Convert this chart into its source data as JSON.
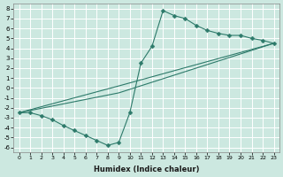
{
  "xlabel": "Humidex (Indice chaleur)",
  "ylabel": "",
  "bg_color": "#cce8e0",
  "line_color": "#2d7a6a",
  "grid_color": "#ffffff",
  "xmin": -0.5,
  "xmax": 23.5,
  "ymin": -6.5,
  "ymax": 8.5,
  "xticks": [
    0,
    1,
    2,
    3,
    4,
    5,
    6,
    7,
    8,
    9,
    10,
    11,
    12,
    13,
    14,
    15,
    16,
    17,
    18,
    19,
    20,
    21,
    22,
    23
  ],
  "yticks": [
    -6,
    -5,
    -4,
    -3,
    -2,
    -1,
    0,
    1,
    2,
    3,
    4,
    5,
    6,
    7,
    8
  ],
  "line1_x": [
    0,
    1,
    2,
    3,
    4,
    5,
    6,
    7,
    8,
    9,
    10,
    11,
    12,
    13,
    14,
    15,
    16,
    17,
    18,
    19,
    20,
    21,
    22,
    23
  ],
  "line1_y": [
    -2.5,
    -2.5,
    -2.8,
    -3.2,
    -3.8,
    -4.3,
    -4.8,
    -5.3,
    -5.8,
    -5.5,
    -2.5,
    2.5,
    4.2,
    7.8,
    7.3,
    7.0,
    6.3,
    5.8,
    5.5,
    5.3,
    5.3,
    5.0,
    4.8,
    4.5
  ],
  "line2_x": [
    0,
    9,
    23
  ],
  "line2_y": [
    -2.5,
    -0.5,
    4.5
  ],
  "line3_x": [
    0,
    9,
    23
  ],
  "line3_y": [
    -2.5,
    0.2,
    4.5
  ]
}
